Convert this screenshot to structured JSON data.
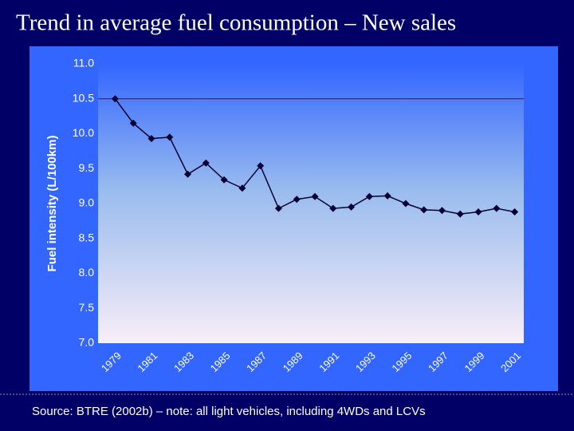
{
  "chart_data": {
    "type": "line",
    "title": "Trend in average fuel consumption – New sales",
    "y_label": "Fuel intensity (L/100km)",
    "source": "Source: BTRE (2002b) – note: all light vehicles, including 4WDs and LCVs",
    "categories": [
      "1979",
      null,
      "1981",
      null,
      "1983",
      null,
      "1985",
      null,
      "1987",
      null,
      "1989",
      null,
      "1991",
      null,
      "1993",
      null,
      "1995",
      null,
      "1997",
      null,
      "1999",
      null,
      "2001"
    ],
    "series": [
      {
        "name": null,
        "color": "#000033",
        "values": [
          10.5,
          10.15,
          9.93,
          9.95,
          9.42,
          9.58,
          9.34,
          9.22,
          9.54,
          8.93,
          9.06,
          9.1,
          8.93,
          8.95,
          9.1,
          9.11,
          9.0,
          8.91,
          8.9,
          8.85,
          8.88,
          8.93,
          8.88
        ]
      }
    ],
    "hline": 10.5,
    "hline_color": "#800000",
    "ylim": [
      7,
      11
    ],
    "yticks": [
      {
        "value": 7,
        "label": "7.0"
      },
      {
        "value": 7.5,
        "label": "7.5"
      },
      {
        "value": 8,
        "label": "8.0"
      },
      {
        "value": 8.5,
        "label": "8.5"
      },
      {
        "value": 9,
        "label": "9.0"
      },
      {
        "value": 9.5,
        "label": "9.5"
      },
      {
        "value": 10,
        "label": "10.0"
      },
      {
        "value": 10.5,
        "label": "10.5"
      },
      {
        "value": 11,
        "label": "11.0"
      }
    ]
  }
}
